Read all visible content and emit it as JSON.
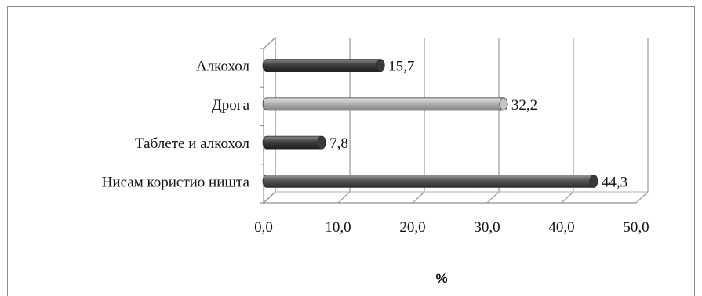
{
  "chart_data": {
    "type": "bar",
    "orientation": "horizontal",
    "categories": [
      "Алкохол",
      "Дрога",
      "Таблете и алкохол",
      "Нисам користио ништа"
    ],
    "values": [
      15.7,
      32.2,
      7.8,
      44.3
    ],
    "data_labels": [
      "15,7",
      "32,2",
      "7,8",
      "44,3"
    ],
    "xlabel": "%",
    "xlim": [
      0,
      50
    ],
    "xticks": [
      "0,0",
      "10,0",
      "20,0",
      "30,0",
      "40,0",
      "50,0"
    ],
    "grid": true,
    "bar_colors": [
      "#4a4a4a",
      "#b5b5b5",
      "#4a4a4a",
      "#5c5c5c"
    ]
  }
}
